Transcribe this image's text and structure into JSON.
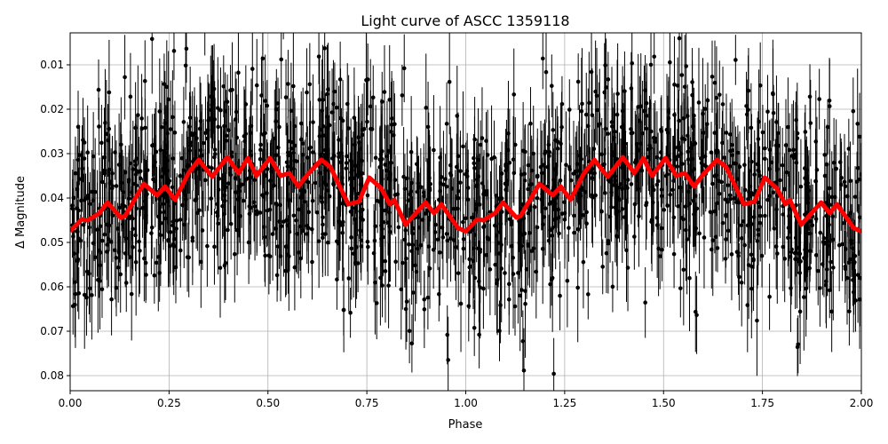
{
  "chart_data": {
    "type": "scatter",
    "title": "Light curve of ASCC 1359118",
    "xlabel": "Phase",
    "ylabel": "Δ Magnitude",
    "xlim": [
      0,
      2
    ],
    "ylim": [
      0.0028,
      0.0834
    ],
    "y_inverted": true,
    "grid": true,
    "x_ticks": [
      "0.00",
      "0.25",
      "0.50",
      "0.75",
      "1.00",
      "1.25",
      "1.50",
      "1.75",
      "2.00"
    ],
    "y_ticks": [
      "0.01",
      "0.02",
      "0.03",
      "0.04",
      "0.05",
      "0.06",
      "0.07",
      "0.08"
    ],
    "colors": {
      "points": "#000000",
      "model": "#ff0000",
      "grid": "#b0b0b0"
    },
    "scatter": {
      "n_points": 1600,
      "noise_sd": 0.0115,
      "errorbar_halfwidth": 0.009,
      "note": "phase-folded photometry with error bars, repeated over two periods"
    },
    "model_curve": {
      "name": "binned model",
      "x": [
        0,
        0.029,
        0.045,
        0.074,
        0.094,
        0.128,
        0.139,
        0.186,
        0.22,
        0.24,
        0.265,
        0.299,
        0.325,
        0.359,
        0.397,
        0.426,
        0.449,
        0.471,
        0.505,
        0.532,
        0.554,
        0.577,
        0.599,
        0.635,
        0.658,
        0.703,
        0.73,
        0.756,
        0.786,
        0.808,
        0.819,
        0.848,
        0.898,
        0.92,
        0.938,
        0.981,
        1.0,
        1.029,
        1.045,
        1.074,
        1.094,
        1.128,
        1.139,
        1.186,
        1.22,
        1.24,
        1.265,
        1.299,
        1.325,
        1.359,
        1.397,
        1.426,
        1.449,
        1.471,
        1.505,
        1.532,
        1.554,
        1.577,
        1.599,
        1.635,
        1.658,
        1.703,
        1.73,
        1.756,
        1.786,
        1.808,
        1.819,
        1.848,
        1.898,
        1.92,
        1.938,
        1.981,
        2.0
      ],
      "y": [
        0.0475,
        0.0448,
        0.045,
        0.0434,
        0.041,
        0.0444,
        0.044,
        0.0368,
        0.0394,
        0.0374,
        0.0404,
        0.0344,
        0.0314,
        0.0352,
        0.0308,
        0.0344,
        0.031,
        0.035,
        0.031,
        0.035,
        0.0344,
        0.0374,
        0.0348,
        0.0314,
        0.033,
        0.0414,
        0.0408,
        0.0354,
        0.0378,
        0.0414,
        0.0404,
        0.046,
        0.041,
        0.0434,
        0.0414,
        0.0468,
        0.0475,
        0.0448,
        0.045,
        0.0434,
        0.041,
        0.0444,
        0.044,
        0.0368,
        0.0394,
        0.0374,
        0.0404,
        0.0344,
        0.0314,
        0.0352,
        0.0308,
        0.0344,
        0.031,
        0.035,
        0.031,
        0.035,
        0.0344,
        0.0374,
        0.0348,
        0.0314,
        0.033,
        0.0414,
        0.0408,
        0.0354,
        0.0378,
        0.0414,
        0.0404,
        0.046,
        0.041,
        0.0434,
        0.0414,
        0.0468,
        0.0475
      ]
    }
  }
}
